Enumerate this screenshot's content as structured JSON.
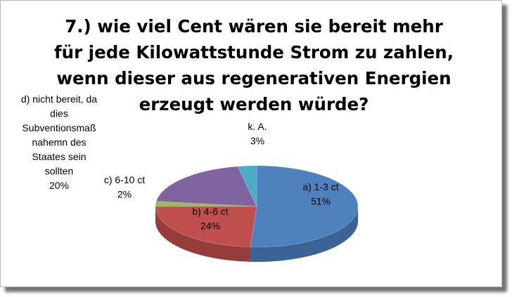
{
  "chart_data": {
    "type": "pie",
    "title_lines": [
      "7.) wie viel Cent wären sie bereit mehr",
      "für jede Kilowattstunde Strom zu zahlen,",
      "wenn dieser aus regenerativen Energien",
      "erzeugt werden würde?"
    ],
    "slices": [
      {
        "label": "a) 1-3 ct",
        "value": 51,
        "pct_text": "51%",
        "color": "#4f81bd",
        "side": "#3a6495"
      },
      {
        "label": "b) 4-6 ct",
        "value": 24,
        "pct_text": "24%",
        "color": "#c0504d",
        "side": "#963c3a"
      },
      {
        "label": "c) 6-10 ct",
        "value": 2,
        "pct_text": "2%",
        "color": "#9bbb59",
        "side": "#7a9446"
      },
      {
        "label": "d) nicht bereit, da dies Subventionsmaß nahemn des Staates sein sollten",
        "value": 20,
        "pct_text": "20%",
        "color": "#8064a2",
        "side": "#634d7e"
      },
      {
        "label": "k. A.",
        "value": 3,
        "pct_text": "3%",
        "color": "#4bacc6",
        "side": "#37879c"
      }
    ],
    "data_labels": [
      [
        "a) 1-3 ct",
        "51%"
      ],
      [
        "b) 4-6 ct",
        "24%"
      ],
      [
        "c) 6-10 ct",
        "2%"
      ],
      [
        "d) nicht bereit, da",
        "dies",
        "Subventionsmaß",
        "nahemn des",
        "Staates sein",
        "sollten",
        "20%"
      ],
      [
        "k. A.",
        "3%"
      ]
    ]
  }
}
